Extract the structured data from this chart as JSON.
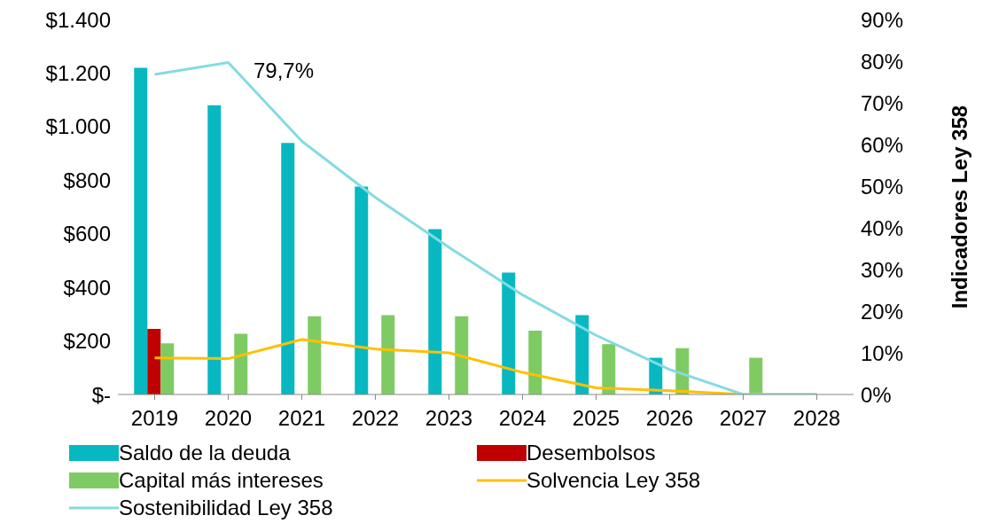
{
  "chart_data": {
    "type": "bar",
    "ylabel": null,
    "y2label": "Indicadores Ley 358",
    "categories": [
      "2019",
      "2020",
      "2021",
      "2022",
      "2023",
      "2024",
      "2025",
      "2026",
      "2027",
      "2028"
    ],
    "series": [
      {
        "name": "Saldo de la deuda",
        "color": "#08b8c0",
        "values": [
          1220,
          1080,
          939,
          776,
          617,
          455,
          296,
          137,
          0,
          0
        ]
      },
      {
        "name": "Desembolsos",
        "color": "#c00000",
        "values": [
          245,
          null,
          null,
          null,
          null,
          null,
          null,
          null,
          null,
          null
        ]
      },
      {
        "name": "Capital más intereses",
        "color": "#7ecb63",
        "values": [
          191,
          227,
          292,
          296,
          292,
          238,
          188,
          173,
          137,
          0
        ]
      },
      {
        "name": "Solvencia Ley 358",
        "type": "line",
        "axis": "y2",
        "color": "#ffc000",
        "values": [
          8.8,
          8.6,
          13.2,
          10.9,
          10.0,
          5.3,
          1.6,
          0.9,
          0,
          0
        ]
      },
      {
        "name": "Sostenibilidad Ley 358",
        "type": "line",
        "axis": "y2",
        "color": "#84dbe2",
        "values": [
          76.8,
          79.7,
          60.8,
          47.3,
          35.3,
          23.9,
          14.2,
          6.0,
          0,
          0
        ]
      }
    ],
    "ylim": [
      0,
      1400
    ],
    "yticks": [
      {
        "value": 0,
        "label": "$-"
      },
      {
        "value": 200,
        "label": "$200"
      },
      {
        "value": 400,
        "label": "$400"
      },
      {
        "value": 600,
        "label": "$600"
      },
      {
        "value": 800,
        "label": "$800"
      },
      {
        "value": 1000,
        "label": "$1.000"
      },
      {
        "value": 1200,
        "label": "$1.200"
      },
      {
        "value": 1400,
        "label": "$1.400"
      }
    ],
    "y2lim": [
      0,
      90
    ],
    "y2ticks": [
      {
        "value": 0,
        "label": "0%"
      },
      {
        "value": 10,
        "label": "10%"
      },
      {
        "value": 20,
        "label": "20%"
      },
      {
        "value": 30,
        "label": "30%"
      },
      {
        "value": 40,
        "label": "40%"
      },
      {
        "value": 50,
        "label": "50%"
      },
      {
        "value": 60,
        "label": "60%"
      },
      {
        "value": 70,
        "label": "70%"
      },
      {
        "value": 80,
        "label": "80%"
      },
      {
        "value": 90,
        "label": "90%"
      }
    ],
    "annotations": [
      "79,7%"
    ],
    "grid": false,
    "legend": "bottom",
    "line_style": "solid"
  }
}
